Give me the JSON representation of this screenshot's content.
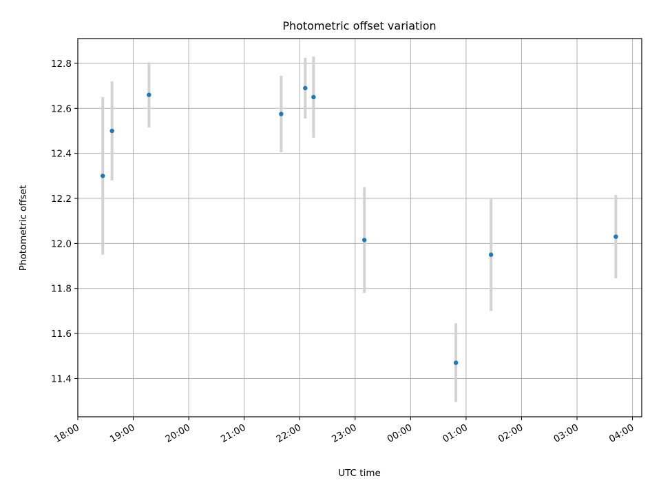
{
  "chart_data": {
    "type": "scatter",
    "title": "Photometric offset variation",
    "xlabel": "UTC time",
    "ylabel": "Photometric offset",
    "x_start": "18:00",
    "x_end": "04:10",
    "ylim": [
      11.23,
      12.91
    ],
    "x_ticks": [
      "18:00",
      "19:00",
      "20:00",
      "21:00",
      "22:00",
      "23:00",
      "00:00",
      "01:00",
      "02:00",
      "03:00",
      "04:00"
    ],
    "y_ticks": [
      "11.4",
      "11.6",
      "11.8",
      "12.0",
      "12.2",
      "12.4",
      "12.6",
      "12.8"
    ],
    "grid": true,
    "series": [
      {
        "x": [
          "18:27",
          "18:37",
          "19:17",
          "21:40",
          "22:06",
          "22:15",
          "23:10",
          "00:49",
          "01:27",
          "03:42"
        ],
        "y": [
          12.3,
          12.5,
          12.66,
          12.575,
          12.69,
          12.65,
          12.015,
          11.47,
          11.95,
          12.03
        ],
        "yerr": [
          0.35,
          0.22,
          0.145,
          0.17,
          0.135,
          0.18,
          0.235,
          0.175,
          0.25,
          0.185
        ]
      }
    ],
    "point_color": "#1f77b4",
    "errorbar_color": "#d3d3d3"
  }
}
